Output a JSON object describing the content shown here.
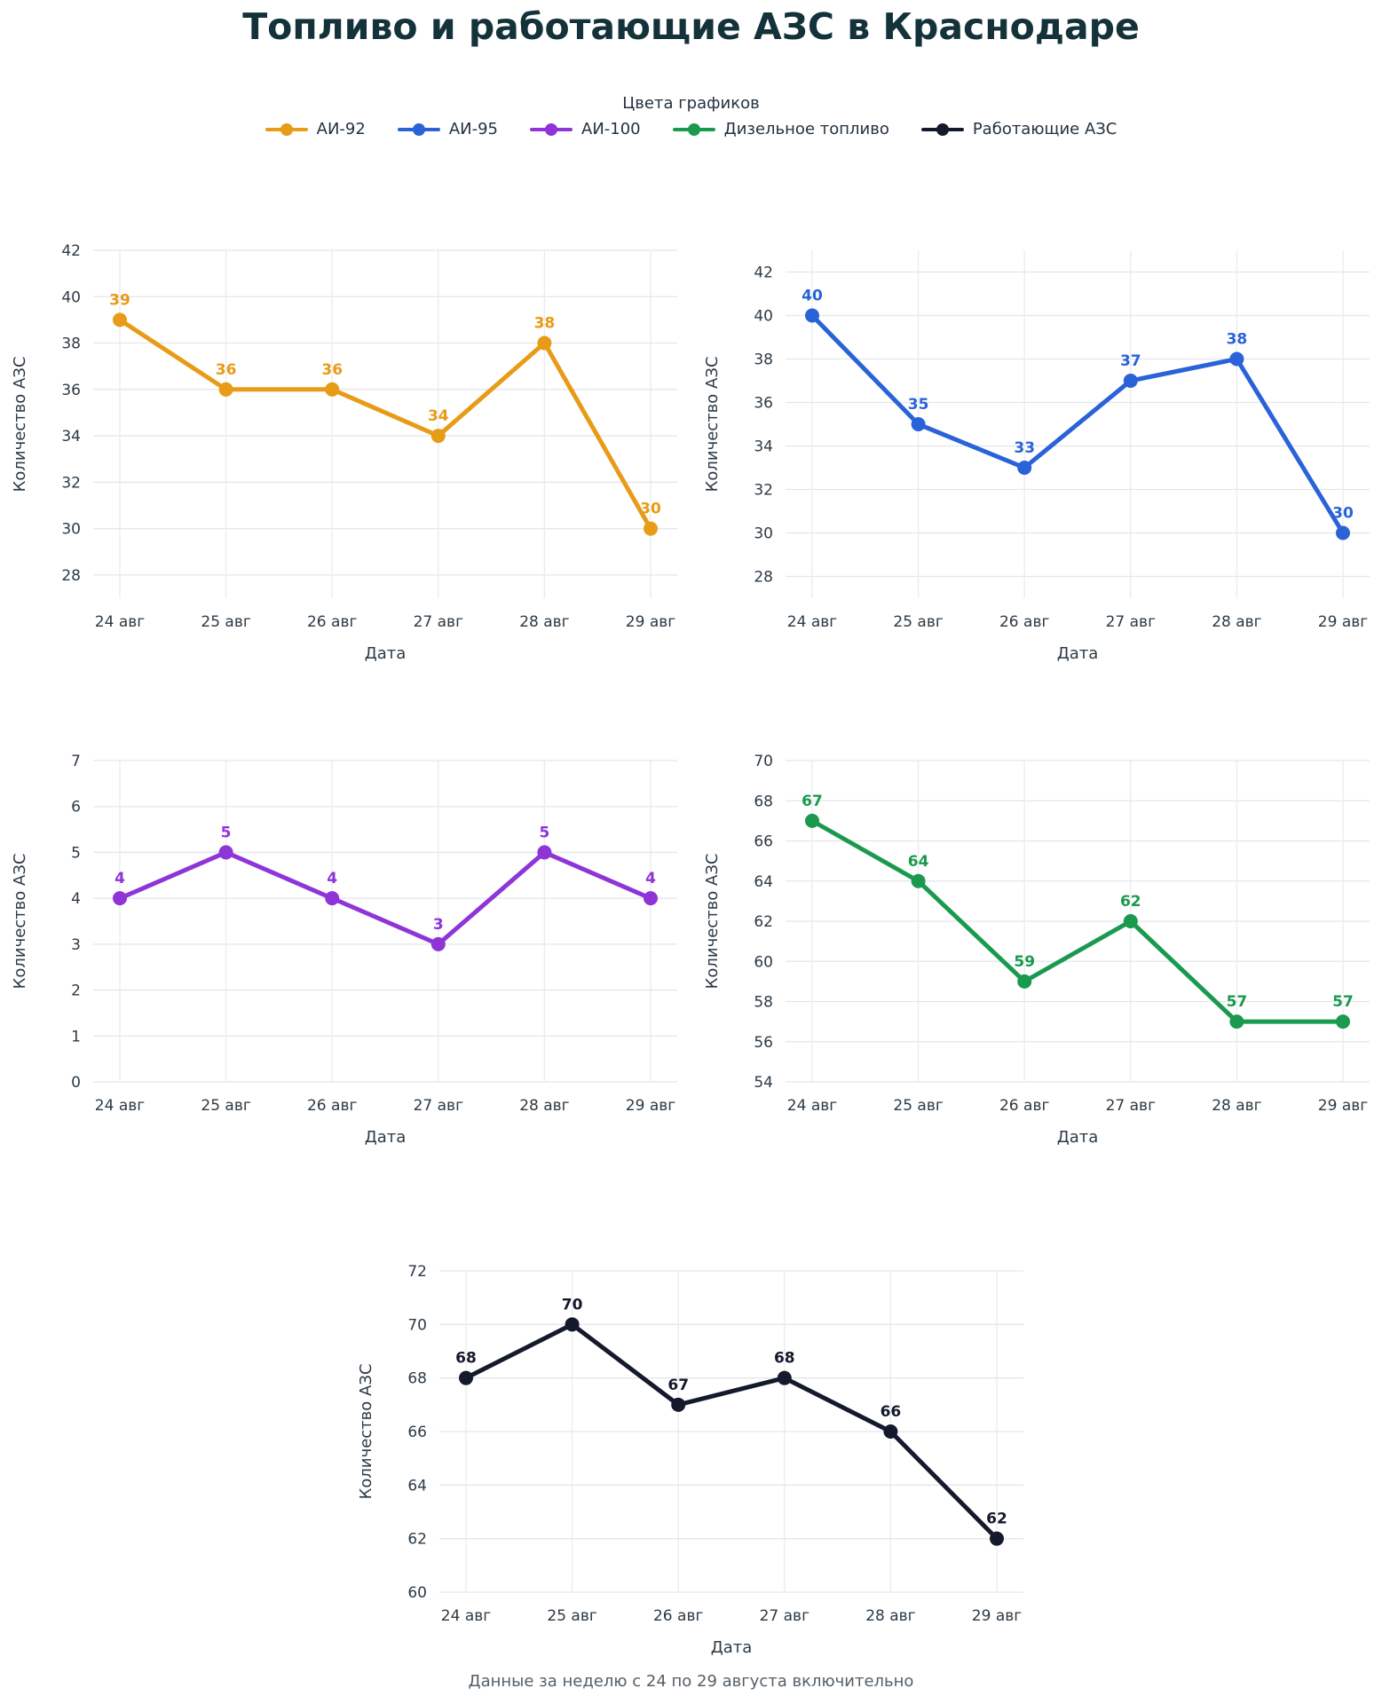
{
  "title": "Топливо и работающие АЗС в Краснодаре",
  "legend": {
    "title": "Цвета графиков",
    "items": [
      {
        "label": "АИ-92",
        "color": "#e89b17"
      },
      {
        "label": "АИ-95",
        "color": "#2a62d8"
      },
      {
        "label": "АИ-100",
        "color": "#8f35d8"
      },
      {
        "label": "Дизельное топливо",
        "color": "#1a9a4e"
      },
      {
        "label": "Работающие АЗС",
        "color": "#141a2c"
      }
    ]
  },
  "footnote": "Данные за неделю с 24 по 29 августа включительно",
  "chart_data": [
    {
      "type": "line",
      "series": [
        {
          "name": "АИ-92",
          "values": [
            39,
            36,
            36,
            34,
            38,
            30
          ]
        }
      ],
      "categories": [
        "24 авг",
        "25 авг",
        "26 авг",
        "27 авг",
        "28 авг",
        "29 авг"
      ],
      "xlabel": "Дата",
      "ylabel": "Количество АЗС",
      "ylim": [
        27,
        42
      ],
      "yticks": [
        28,
        30,
        32,
        34,
        36,
        38,
        40,
        42
      ],
      "color": "#e89b17",
      "grid": true
    },
    {
      "type": "line",
      "series": [
        {
          "name": "АИ-95",
          "values": [
            40,
            35,
            33,
            37,
            38,
            30
          ]
        }
      ],
      "categories": [
        "24 авг",
        "25 авг",
        "26 авг",
        "27 авг",
        "28 авг",
        "29 авг"
      ],
      "xlabel": "Дата",
      "ylabel": "Количество АЗС",
      "ylim": [
        27,
        43
      ],
      "yticks": [
        28,
        30,
        32,
        34,
        36,
        38,
        40,
        42
      ],
      "color": "#2a62d8",
      "grid": true
    },
    {
      "type": "line",
      "series": [
        {
          "name": "АИ-100",
          "values": [
            4,
            5,
            4,
            3,
            5,
            4
          ]
        }
      ],
      "categories": [
        "24 авг",
        "25 авг",
        "26 авг",
        "27 авг",
        "28 авг",
        "29 авг"
      ],
      "xlabel": "Дата",
      "ylabel": "Количество АЗС",
      "ylim": [
        0,
        7
      ],
      "yticks": [
        0,
        1,
        2,
        3,
        4,
        5,
        6,
        7
      ],
      "color": "#8f35d8",
      "grid": true
    },
    {
      "type": "line",
      "series": [
        {
          "name": "Дизельное топливо",
          "values": [
            67,
            64,
            59,
            62,
            57,
            57
          ]
        }
      ],
      "categories": [
        "24 авг",
        "25 авг",
        "26 авг",
        "27 авг",
        "28 авг",
        "29 авг"
      ],
      "xlabel": "Дата",
      "ylabel": "Количество АЗС",
      "ylim": [
        54,
        70
      ],
      "yticks": [
        54,
        56,
        58,
        60,
        62,
        64,
        66,
        68,
        70
      ],
      "color": "#1a9a4e",
      "grid": true
    },
    {
      "type": "line",
      "series": [
        {
          "name": "Работающие АЗС",
          "values": [
            68,
            70,
            67,
            68,
            66,
            62
          ]
        }
      ],
      "categories": [
        "24 авг",
        "25 авг",
        "26 авг",
        "27 авг",
        "28 авг",
        "29 авг"
      ],
      "xlabel": "Дата",
      "ylabel": "Количество АЗС",
      "ylim": [
        60,
        72
      ],
      "yticks": [
        60,
        62,
        64,
        66,
        68,
        70,
        72
      ],
      "color": "#141a2c",
      "grid": true
    }
  ]
}
